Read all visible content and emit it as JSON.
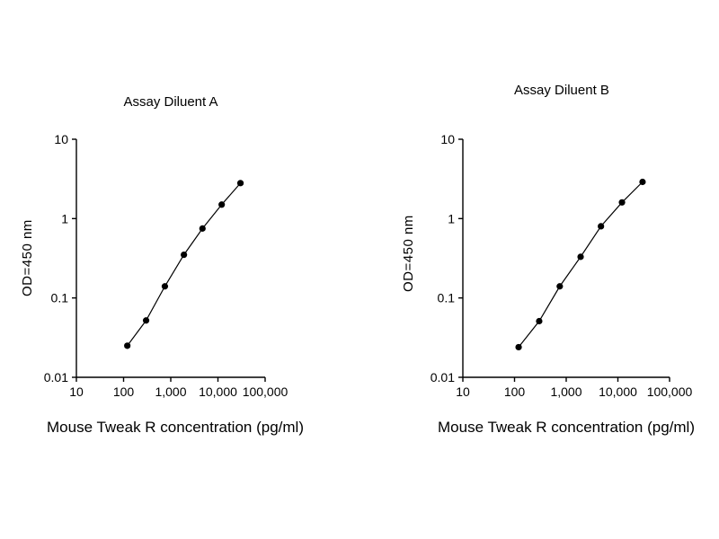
{
  "figure": {
    "background": "#ffffff",
    "axis_color": "#000000",
    "marker_color": "#000000"
  },
  "chart_data": [
    {
      "type": "line",
      "title": "Assay Diluent A",
      "xlabel": "Mouse Tweak R concentration (pg/ml)",
      "ylabel": "OD=450 nm",
      "xscale": "log",
      "yscale": "log",
      "xlim": [
        10,
        100000
      ],
      "ylim": [
        0.01,
        10
      ],
      "xticks": [
        "10",
        "100",
        "1,000",
        "10,000",
        "100,000"
      ],
      "yticks": [
        "0.01",
        "0.1",
        "1",
        "10"
      ],
      "x": [
        120,
        300,
        750,
        1900,
        4700,
        12000,
        30000
      ],
      "y": [
        0.025,
        0.052,
        0.14,
        0.35,
        0.75,
        1.5,
        2.8
      ],
      "marker": "circle",
      "color": "#000000",
      "grid": false,
      "legend": "none"
    },
    {
      "type": "line",
      "title": "Assay Diluent B",
      "xlabel": "Mouse Tweak R concentration (pg/ml)",
      "ylabel": "OD=450 nm",
      "xscale": "log",
      "yscale": "log",
      "xlim": [
        10,
        100000
      ],
      "ylim": [
        0.01,
        10
      ],
      "xticks": [
        "10",
        "100",
        "1,000",
        "10,000",
        "100,000"
      ],
      "yticks": [
        "0.01",
        "0.1",
        "1",
        "10"
      ],
      "x": [
        120,
        300,
        750,
        1900,
        4700,
        12000,
        30000
      ],
      "y": [
        0.024,
        0.051,
        0.14,
        0.33,
        0.8,
        1.6,
        2.9
      ],
      "marker": "circle",
      "color": "#000000",
      "grid": false,
      "legend": "none"
    }
  ]
}
